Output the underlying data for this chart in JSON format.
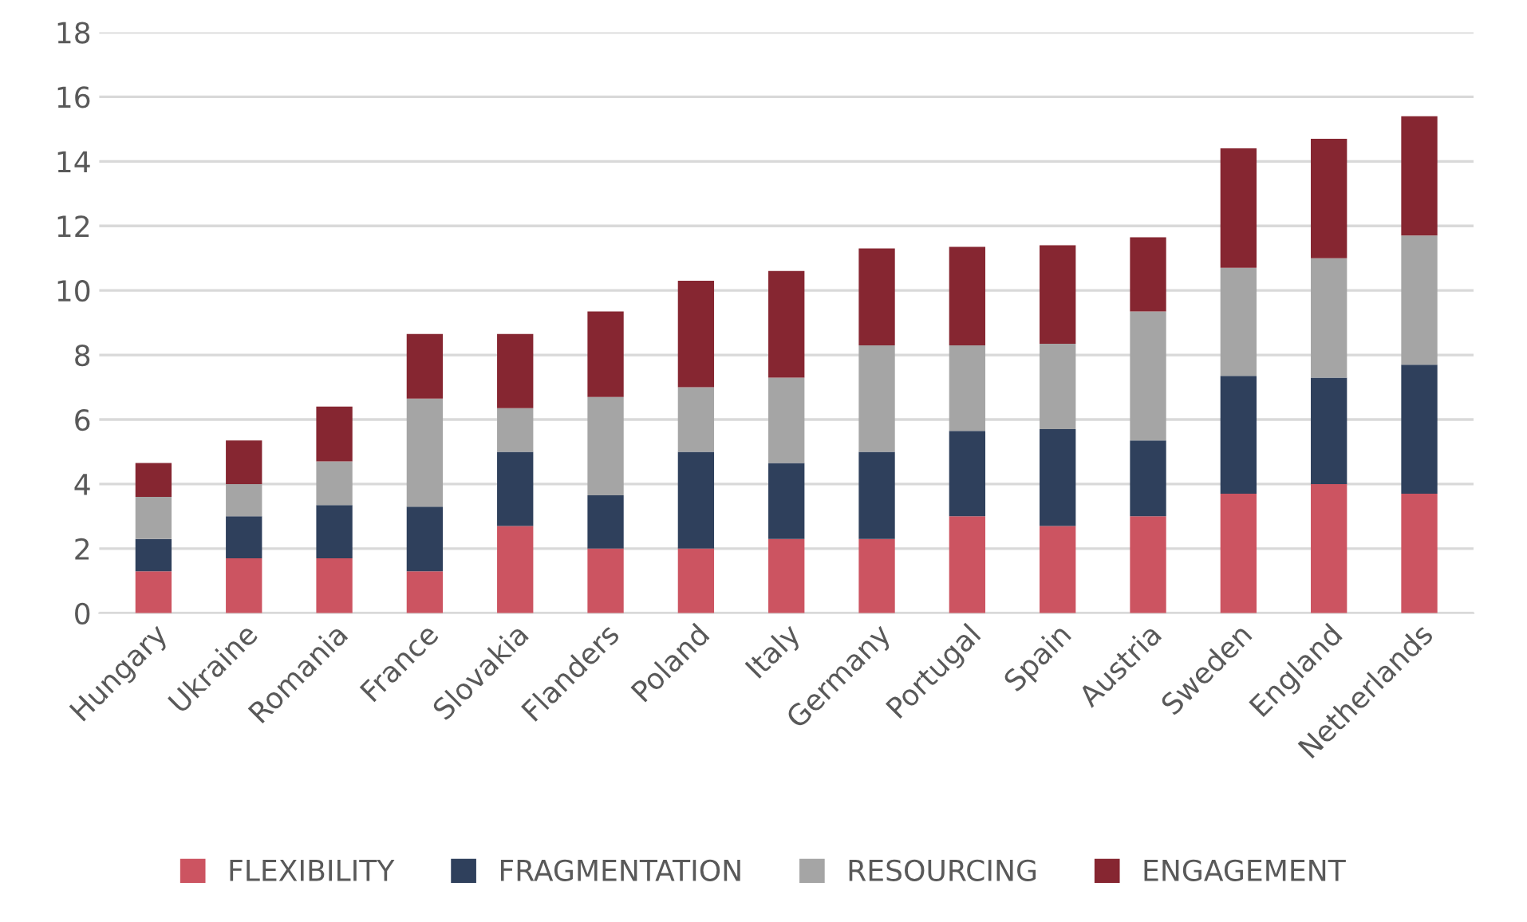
{
  "chart_data": {
    "type": "bar",
    "stacked": true,
    "categories": [
      "Hungary",
      "Ukraine",
      "Romania",
      "France",
      "Slovakia",
      "Flanders",
      "Poland",
      "Italy",
      "Germany",
      "Portugal",
      "Spain",
      "Austria",
      "Sweden",
      "England",
      "Netherlands"
    ],
    "series": [
      {
        "name": "FLEXIBILITY",
        "color": "#cc5461",
        "values": [
          1.3,
          1.7,
          1.7,
          1.3,
          2.7,
          2.0,
          2.0,
          2.3,
          2.3,
          3.0,
          2.7,
          3.0,
          3.7,
          4.0,
          3.7
        ]
      },
      {
        "name": "FRAGMENTATION",
        "color": "#2f405c",
        "values": [
          1.0,
          1.3,
          1.65,
          2.0,
          2.3,
          1.65,
          3.0,
          2.35,
          2.7,
          2.65,
          3.0,
          2.35,
          3.65,
          3.3,
          4.0
        ]
      },
      {
        "name": "RESOURCING",
        "color": "#a5a5a5",
        "values": [
          1.3,
          1.0,
          1.35,
          3.35,
          1.35,
          3.05,
          2.0,
          2.65,
          3.3,
          2.65,
          2.65,
          4.0,
          3.35,
          3.7,
          4.0
        ]
      },
      {
        "name": "ENGAGEMENT",
        "color": "#862631",
        "values": [
          1.05,
          1.35,
          1.7,
          2.0,
          2.3,
          2.65,
          3.3,
          3.3,
          3.0,
          3.05,
          3.05,
          2.3,
          3.7,
          3.7,
          3.7
        ]
      }
    ],
    "ylim": [
      0,
      18
    ],
    "yticks": [
      0,
      2,
      4,
      6,
      8,
      10,
      12,
      14,
      16,
      18
    ],
    "grid": "y",
    "legend": "bottom"
  }
}
